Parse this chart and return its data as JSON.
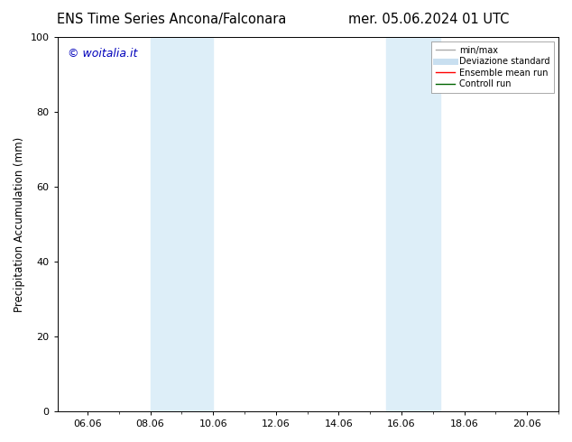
{
  "title_left": "ENS Time Series Ancona/Falconara",
  "title_right": "mer. 05.06.2024 01 UTC",
  "ylabel": "Precipitation Accumulation (mm)",
  "ylim": [
    0,
    100
  ],
  "xlim": [
    5.04,
    21.0
  ],
  "xtick_positions": [
    6,
    8,
    10,
    12,
    14,
    16,
    18,
    20
  ],
  "xtick_labels": [
    "06.06",
    "08.06",
    "10.06",
    "12.06",
    "14.06",
    "16.06",
    "18.06",
    "20.06"
  ],
  "ytick_positions": [
    0,
    20,
    40,
    60,
    80,
    100
  ],
  "ytick_labels": [
    "0",
    "20",
    "40",
    "60",
    "80",
    "100"
  ],
  "shaded_regions": [
    {
      "xstart": 8.0,
      "xend": 10.0,
      "color": "#ddeef8"
    },
    {
      "xstart": 15.5,
      "xend": 17.25,
      "color": "#ddeef8"
    }
  ],
  "background_color": "#ffffff",
  "watermark_text": "© woitalia.it",
  "watermark_color": "#0000bb",
  "legend_entries": [
    {
      "label": "min/max",
      "color": "#aaaaaa",
      "lw": 1.0
    },
    {
      "label": "Deviazione standard",
      "color": "#c8dff0",
      "lw": 5
    },
    {
      "label": "Ensemble mean run",
      "color": "#ff0000",
      "lw": 1.0
    },
    {
      "label": "Controll run",
      "color": "#006400",
      "lw": 1.0
    }
  ],
  "title_fontsize": 10.5,
  "ylabel_fontsize": 8.5,
  "tick_fontsize": 8,
  "watermark_fontsize": 9,
  "legend_fontsize": 7
}
